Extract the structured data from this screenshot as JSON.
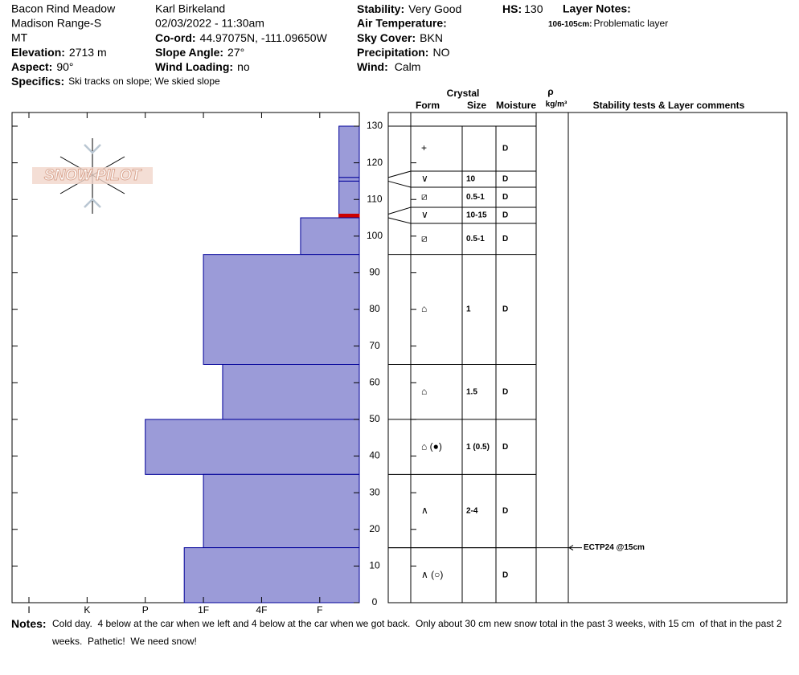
{
  "header": {
    "location": "Bacon Rind Meadow",
    "range": "Madison Range-S",
    "state": "MT",
    "elevation": {
      "label": "Elevation:",
      "value": "2713 m"
    },
    "aspect": {
      "label": "Aspect:",
      "value": "90°"
    },
    "specifics": {
      "label": "Specifics:",
      "value": "Ski tracks on slope; We skied slope"
    },
    "observer": "Karl Birkeland",
    "datetime": "02/03/2022 - 11:30am",
    "coord": {
      "label": "Co-ord:",
      "value": "44.97075N, -111.09650W"
    },
    "slope_angle": {
      "label": "Slope Angle:",
      "value": "27°"
    },
    "wind_loading": {
      "label": "Wind Loading:",
      "value": "no"
    },
    "stability": {
      "label": "Stability:",
      "value": "Very Good"
    },
    "air_temperature": {
      "label": "Air Temperature:"
    },
    "sky_cover": {
      "label": "Sky Cover:",
      "value": "BKN"
    },
    "precipitation": {
      "label": "Precipitation:",
      "value": "NO"
    },
    "wind": {
      "label": "Wind:",
      "value": "Calm"
    },
    "hs": {
      "label": "HS:",
      "value": 130
    },
    "layer_notes": {
      "label": "Layer Notes:",
      "items": [
        {
          "depth": "106-105cm:",
          "note": "Problematic layer"
        }
      ]
    }
  },
  "logo": "SNOW PILOT",
  "profile": {
    "type": "bar",
    "orientation": "horizontal",
    "color": "#9b9bd8",
    "stroke": "#000099",
    "xlim": [
      6.29,
      0.32
    ],
    "xticks": [
      {
        "value": 6,
        "label": "I"
      },
      {
        "value": 5,
        "label": "K"
      },
      {
        "value": 4,
        "label": "P"
      },
      {
        "value": 3,
        "label": "1F"
      },
      {
        "value": 2,
        "label": "4F"
      },
      {
        "value": 1,
        "label": "F"
      }
    ],
    "ylim": [
      0,
      130
    ],
    "yticks": [
      0,
      10,
      20,
      30,
      40,
      50,
      60,
      70,
      80,
      90,
      100,
      110,
      120,
      130
    ],
    "layers": [
      {
        "top": 130,
        "bottom": 116,
        "hardness": 0.67,
        "form": "+",
        "moisture": "D"
      },
      {
        "top": 116,
        "bottom": 115,
        "hardness": 0.67,
        "form": "∨",
        "size": 10,
        "moisture": "D"
      },
      {
        "top": 115,
        "bottom": 106,
        "hardness": 0.67,
        "form": "⧄",
        "size": "0.5-1",
        "moisture": "D"
      },
      {
        "top": 106,
        "bottom": 105,
        "hardness": 0.67,
        "form": "∨",
        "size": "10-15",
        "moisture": "D",
        "highlight": "#cc0000"
      },
      {
        "top": 105,
        "bottom": 95,
        "hardness": 1.33,
        "form": "⧄",
        "size": "0.5-1",
        "moisture": "D"
      },
      {
        "top": 95,
        "bottom": 65,
        "hardness": 3,
        "form": "⌂",
        "size": 1,
        "moisture": "D"
      },
      {
        "top": 65,
        "bottom": 50,
        "hardness": 2.67,
        "form": "⌂",
        "size": 1.5,
        "moisture": "D"
      },
      {
        "top": 50,
        "bottom": 35,
        "hardness": 4,
        "form": "⌂ (●)",
        "size": "1 (0.5)",
        "moisture": "D"
      },
      {
        "top": 35,
        "bottom": 15,
        "hardness": 3,
        "form": "∧",
        "size": "2-4",
        "moisture": "D"
      },
      {
        "top": 15,
        "bottom": 0,
        "hardness": 3.33,
        "form": "∧ (○)",
        "moisture": "D"
      }
    ]
  },
  "table": {
    "crystal": "Crystal",
    "form": "Form",
    "size": "Size",
    "moisture": "Moisture",
    "rho": "ρ",
    "density_unit": "kg/m³",
    "comments": "Stability tests & Layer comments"
  },
  "tests": [
    {
      "label": "ECTP24 @15cm",
      "depth": 15
    }
  ],
  "notes": {
    "label": "Notes:",
    "text": "Cold day.  4 below at the car when we left and 4 below at the car when we got back.  Only about 30 cm new snow total in the past 3 weeks, with 15 cm  of that in the past 2 weeks.  Pathetic!  We need snow!"
  }
}
